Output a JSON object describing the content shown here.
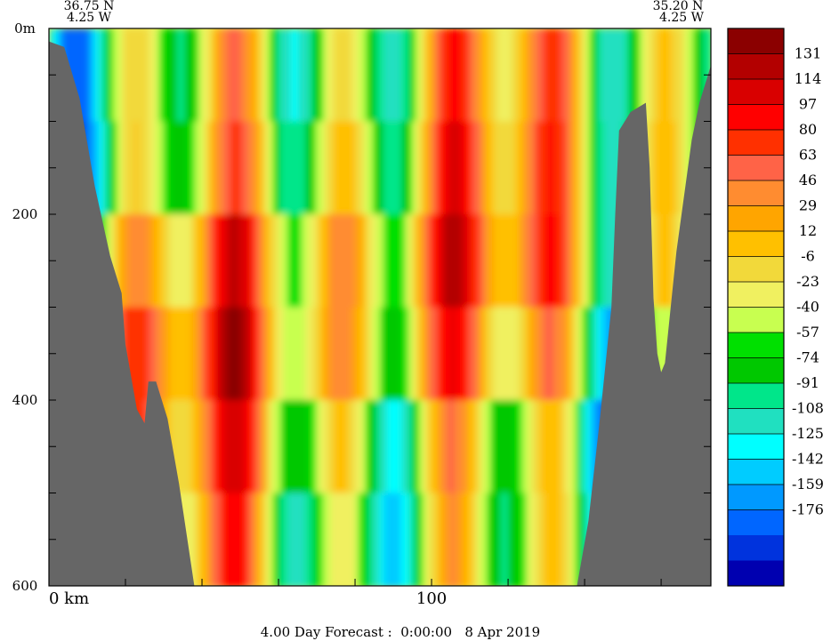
{
  "chart_data": {
    "type": "heatmap",
    "title": "",
    "corner_labels": {
      "left_lat": "36.75 N",
      "left_lon": "4.25 W",
      "right_lat": "35.20 N",
      "right_lon": "4.25 W"
    },
    "x_axis": {
      "unit_label": "km",
      "range": [
        0,
        173
      ],
      "ticks": [
        0,
        20,
        40,
        60,
        80,
        100,
        120,
        140,
        160
      ],
      "tick_labels": [
        {
          "value": 0,
          "label": "0 km"
        },
        {
          "value": 100,
          "label": "100"
        }
      ]
    },
    "y_axis": {
      "range": [
        0,
        600
      ],
      "inverted": true,
      "ticks": [
        0,
        50,
        100,
        150,
        200,
        250,
        300,
        350,
        400,
        450,
        500,
        550,
        600
      ],
      "tick_labels": [
        {
          "value": 0,
          "label": "0m"
        },
        {
          "value": 200,
          "label": "200"
        },
        {
          "value": 400,
          "label": "400"
        },
        {
          "value": 600,
          "label": "600"
        }
      ]
    },
    "colorbar": {
      "labels": [
        "131",
        "114",
        "97",
        "80",
        "63",
        "46",
        "29",
        "12",
        "-6",
        "-23",
        "-40",
        "-57",
        "-74",
        "-91",
        "-108",
        "-125",
        "-142",
        "-159",
        "-176"
      ],
      "colors": [
        "#8b0000",
        "#b30000",
        "#d90000",
        "#ff0000",
        "#ff3000",
        "#ff6347",
        "#ff8c30",
        "#ffa500",
        "#ffc000",
        "#f2d93a",
        "#f0f060",
        "#c8ff50",
        "#00e000",
        "#00c800",
        "#00e68a",
        "#20e0c0",
        "#00ffff",
        "#00ccff",
        "#0099ff",
        "#0066ff",
        "#0033dd",
        "#0000b0"
      ]
    },
    "topography": {
      "color": "#666666",
      "left_shelf": [
        [
          0,
          14
        ],
        [
          4,
          20
        ],
        [
          8,
          75
        ],
        [
          12,
          170
        ],
        [
          16,
          245
        ],
        [
          19,
          285
        ],
        [
          20,
          340
        ],
        [
          23,
          410
        ],
        [
          25,
          425
        ],
        [
          26,
          380
        ],
        [
          28,
          380
        ],
        [
          31,
          420
        ],
        [
          34,
          490
        ],
        [
          38,
          600
        ]
      ],
      "right_shelf": [
        [
          138,
          600
        ],
        [
          141,
          530
        ],
        [
          144,
          420
        ],
        [
          147,
          300
        ],
        [
          148,
          200
        ],
        [
          149,
          110
        ],
        [
          152,
          90
        ],
        [
          156,
          80
        ],
        [
          157,
          150
        ],
        [
          158,
          290
        ],
        [
          159,
          350
        ],
        [
          160,
          370
        ],
        [
          161,
          360
        ],
        [
          162,
          320
        ],
        [
          164,
          240
        ],
        [
          166,
          180
        ],
        [
          168,
          120
        ],
        [
          170,
          80
        ],
        [
          173,
          40
        ]
      ]
    },
    "footer": "4.00 Day Forecast :  0:00:00   8 Apr 2019"
  }
}
